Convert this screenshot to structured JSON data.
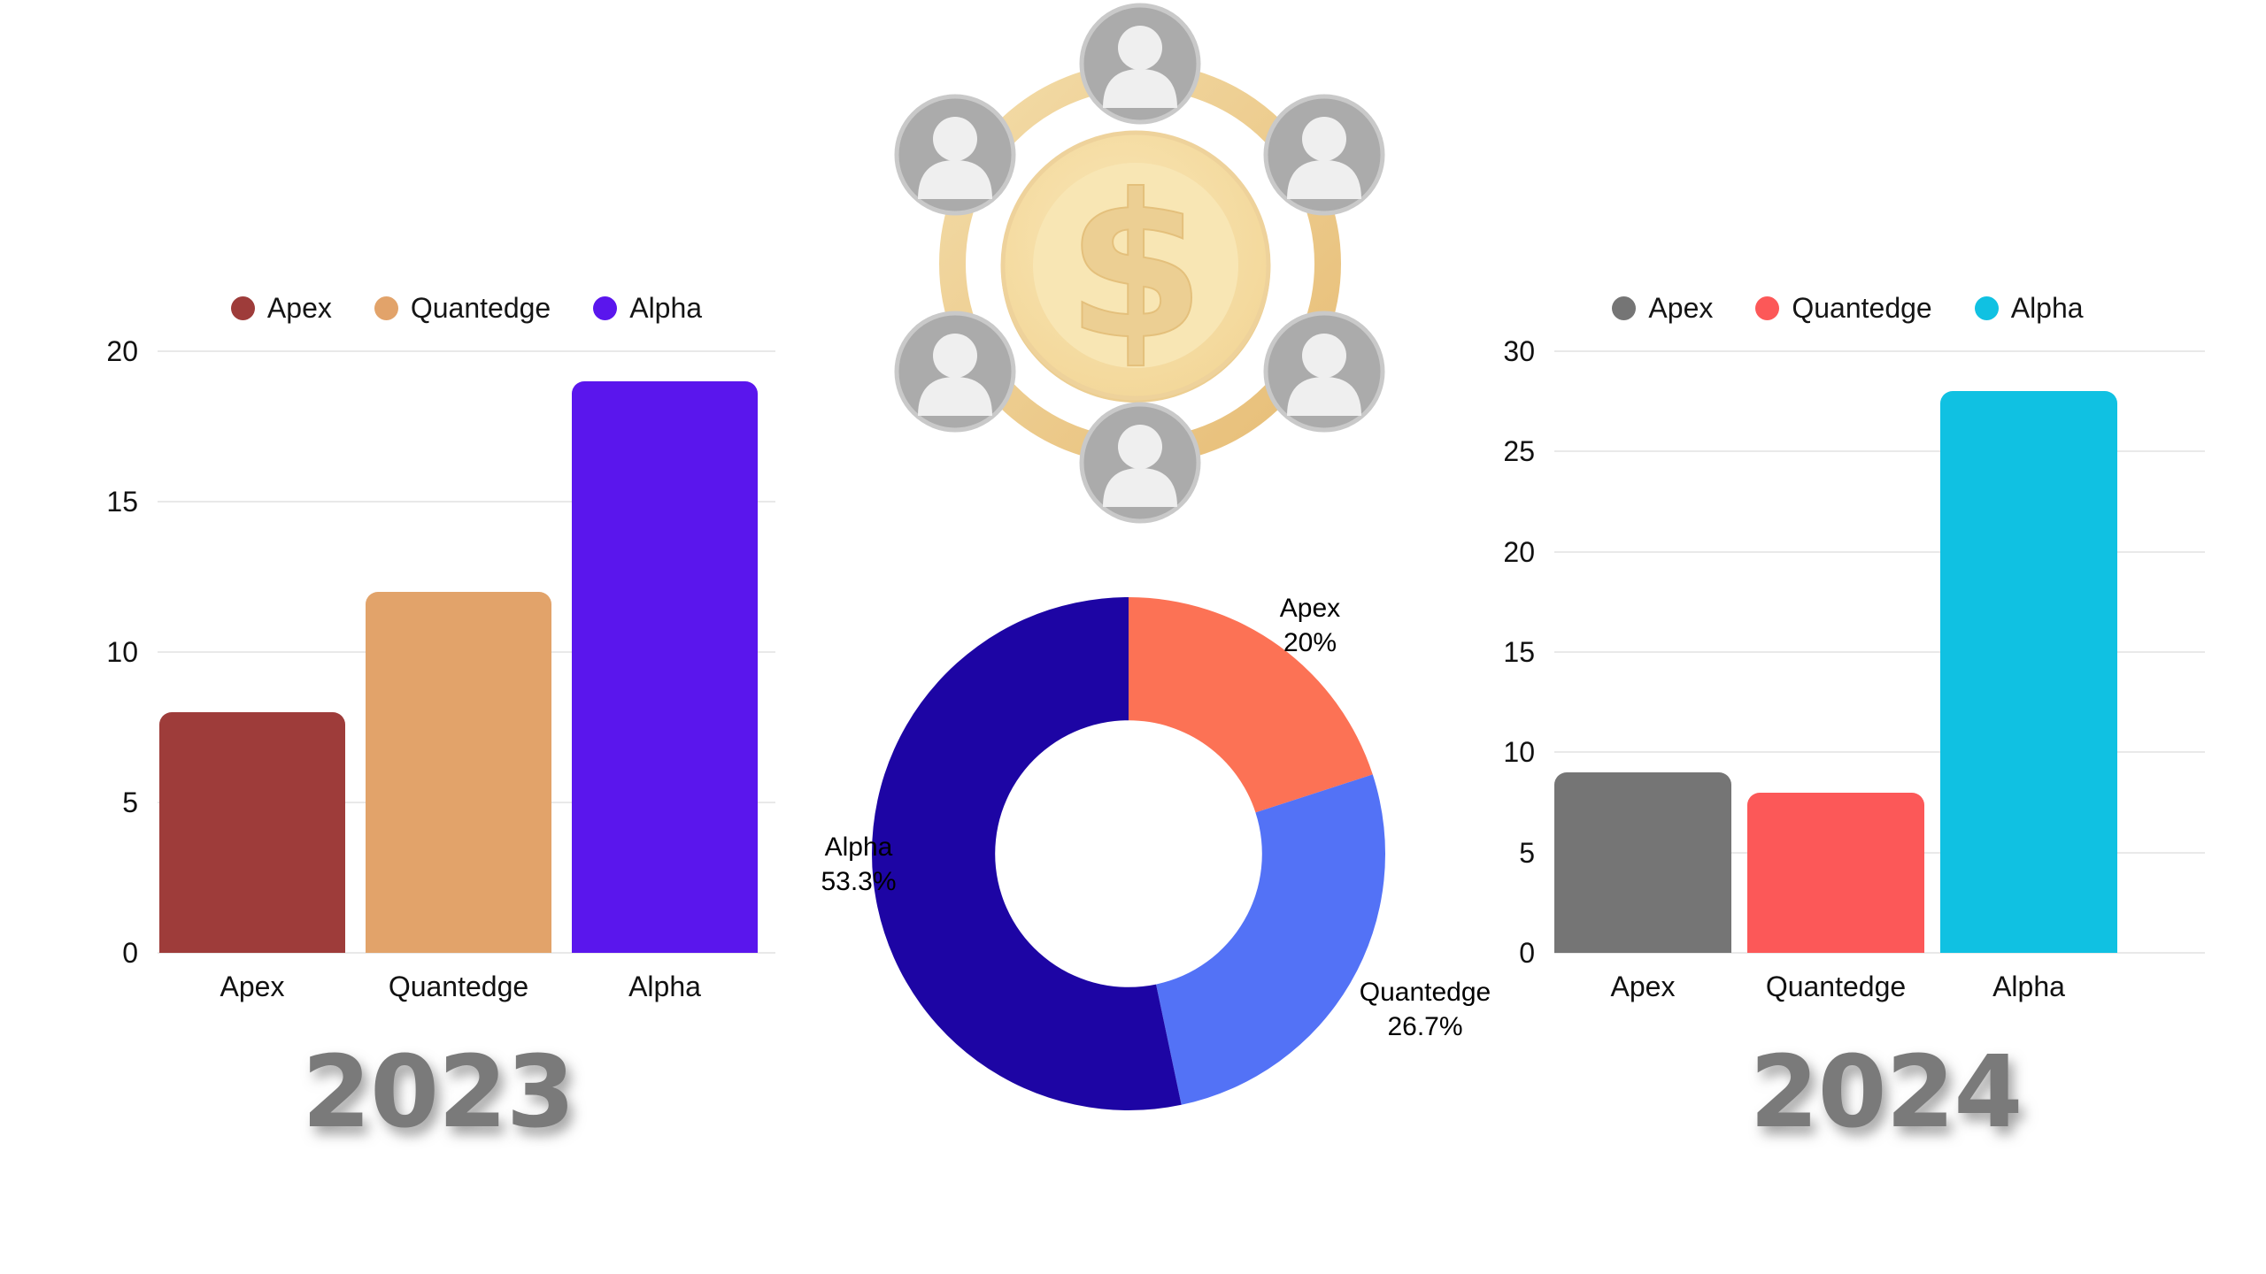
{
  "page": {
    "background": "#ffffff"
  },
  "chart_data": [
    {
      "id": "bar-2023",
      "type": "bar",
      "title": "2023",
      "categories": [
        "Apex",
        "Quantedge",
        "Alpha"
      ],
      "values": [
        8,
        12,
        19
      ],
      "colors": [
        "#9e3c3a",
        "#e2a36a",
        "#5a16ed"
      ],
      "ylim": [
        0,
        20
      ],
      "ytick_step": 5,
      "grid": true,
      "legend_position": "top"
    },
    {
      "id": "donut-share",
      "type": "pie",
      "title": "",
      "slices": [
        {
          "label": "Apex",
          "pct_label": "20%",
          "value": 20.0,
          "color": "#fc7255"
        },
        {
          "label": "Quantedge",
          "pct_label": "26.7%",
          "value": 26.7,
          "color": "#5372f6"
        },
        {
          "label": "Alpha",
          "pct_label": "53.3%",
          "value": 53.3,
          "color": "#1d05a4"
        }
      ],
      "start_angle_deg": 0,
      "direction": "clockwise",
      "inner_radius_ratio": 0.52
    },
    {
      "id": "bar-2024",
      "type": "bar",
      "title": "2024",
      "categories": [
        "Apex",
        "Quantedge",
        "Alpha"
      ],
      "values": [
        9,
        8,
        28
      ],
      "colors": [
        "#757575",
        "#fc5858",
        "#10c1e2"
      ],
      "ylim": [
        0,
        30
      ],
      "ytick_step": 5,
      "grid": true,
      "legend_position": "top"
    }
  ],
  "center_icon": {
    "name": "money-network",
    "dollar_glyph": "$",
    "coin_color": "#f5dda6",
    "ring_color": "#eccd90",
    "avatar_color": "#ababab"
  },
  "text_color": "#111111",
  "gridline_color": "#e9e9e9",
  "title_color": "#7a7a7a"
}
